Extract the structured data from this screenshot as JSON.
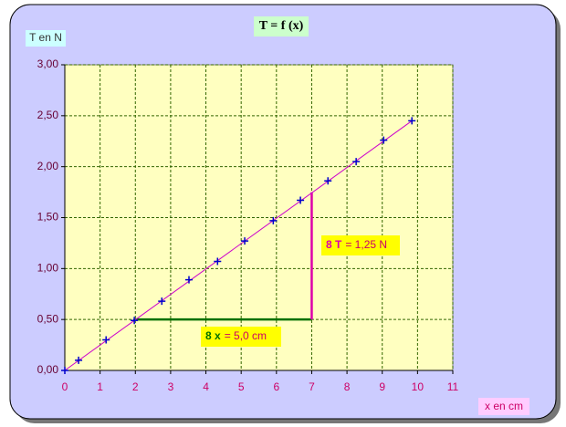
{
  "chart_data": {
    "type": "scatter",
    "title": "T = f (x)",
    "ylabel": "T en N",
    "xlabel": "x en cm",
    "x": [
      0,
      0.39,
      1.17,
      1.97,
      2.75,
      3.52,
      4.33,
      5.1,
      5.91,
      6.68,
      7.46,
      8.26,
      9.04,
      9.84
    ],
    "values": [
      0,
      0.1,
      0.3,
      0.49,
      0.68,
      0.89,
      1.07,
      1.27,
      1.47,
      1.67,
      1.86,
      2.05,
      2.26,
      2.45
    ],
    "color": "#0000cc",
    "fit": {
      "x": [
        0,
        9.84
      ],
      "values": [
        0,
        2.45
      ],
      "color": "#cc00cc"
    },
    "segments": [
      {
        "x": [
          2,
          7
        ],
        "values": [
          0.5,
          0.5
        ],
        "color": "#007000"
      },
      {
        "x": [
          7,
          7
        ],
        "values": [
          0.5,
          1.75
        ],
        "color": "#dd00aa"
      }
    ],
    "annotations": [
      {
        "symbol": "8 x",
        "text": "= 5,0 cm",
        "color": "#007000"
      },
      {
        "symbol": "8 T",
        "text": "= 1,25 N",
        "color": "#dd00aa"
      }
    ],
    "xlim": [
      0,
      11
    ],
    "xticks": [
      0,
      1,
      2,
      3,
      4,
      5,
      6,
      7,
      8,
      9,
      10,
      11
    ],
    "ylim": [
      0,
      3
    ],
    "yticks": [
      {
        "value": 0,
        "label": "0,00"
      },
      {
        "value": 0.5,
        "label": "0,50"
      },
      {
        "value": 1,
        "label": "1,00"
      },
      {
        "value": 1.5,
        "label": "1,50"
      },
      {
        "value": 2,
        "label": "2,00"
      },
      {
        "value": 2.5,
        "label": "2,50"
      },
      {
        "value": 3,
        "label": "3,00"
      }
    ],
    "grid": true
  }
}
